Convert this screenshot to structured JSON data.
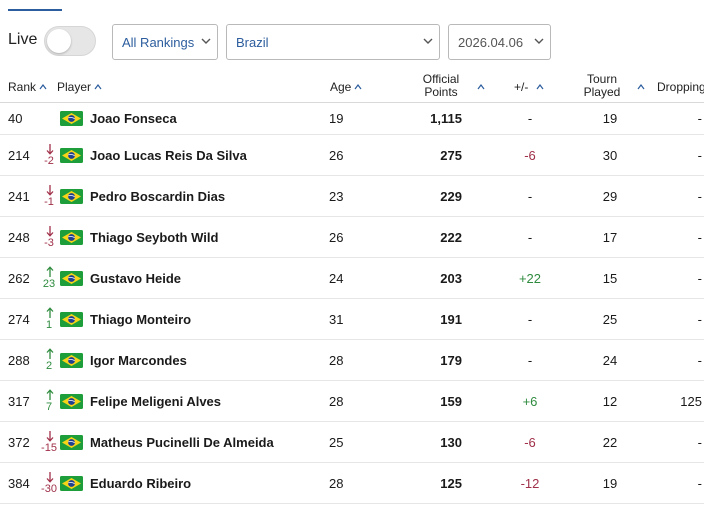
{
  "controls": {
    "live_label": "Live",
    "ranking_type": "All Rankings",
    "country": "Brazil",
    "date": "2026.04.06"
  },
  "columns": {
    "rank": "Rank",
    "player": "Player",
    "age": "Age",
    "points_line1": "Official",
    "points_line2": "Points",
    "delta": "+/-",
    "played_line1": "Tourn",
    "played_line2": "Played",
    "dropping": "Dropping"
  },
  "colors": {
    "accent": "#2c5d9e",
    "rise": "#2e8b3e",
    "fall": "#a03049"
  },
  "rows": [
    {
      "rank": "40",
      "move_dir": "none",
      "move": "",
      "flag": "brazil-flag-icon",
      "player": "Joao Fonseca",
      "age": "19",
      "points": "1,115",
      "delta": "-",
      "played": "19",
      "dropping": "-"
    },
    {
      "rank": "214",
      "move_dir": "down",
      "move": "-2",
      "flag": "brazil-flag-icon",
      "player": "Joao Lucas Reis Da Silva",
      "age": "26",
      "points": "275",
      "delta": "-6",
      "played": "30",
      "dropping": "-"
    },
    {
      "rank": "241",
      "move_dir": "down",
      "move": "-1",
      "flag": "brazil-flag-icon",
      "player": "Pedro Boscardin Dias",
      "age": "23",
      "points": "229",
      "delta": "-",
      "played": "29",
      "dropping": "-"
    },
    {
      "rank": "248",
      "move_dir": "down",
      "move": "-3",
      "flag": "brazil-flag-icon",
      "player": "Thiago Seyboth Wild",
      "age": "26",
      "points": "222",
      "delta": "-",
      "played": "17",
      "dropping": "-"
    },
    {
      "rank": "262",
      "move_dir": "up",
      "move": "23",
      "flag": "brazil-flag-icon",
      "player": "Gustavo Heide",
      "age": "24",
      "points": "203",
      "delta": "+22",
      "played": "15",
      "dropping": "-"
    },
    {
      "rank": "274",
      "move_dir": "up",
      "move": "1",
      "flag": "brazil-flag-icon",
      "player": "Thiago Monteiro",
      "age": "31",
      "points": "191",
      "delta": "-",
      "played": "25",
      "dropping": "-"
    },
    {
      "rank": "288",
      "move_dir": "up",
      "move": "2",
      "flag": "brazil-flag-icon",
      "player": "Igor Marcondes",
      "age": "28",
      "points": "179",
      "delta": "-",
      "played": "24",
      "dropping": "-"
    },
    {
      "rank": "317",
      "move_dir": "up",
      "move": "7",
      "flag": "brazil-flag-icon",
      "player": "Felipe Meligeni Alves",
      "age": "28",
      "points": "159",
      "delta": "+6",
      "played": "12",
      "dropping": "125"
    },
    {
      "rank": "372",
      "move_dir": "down",
      "move": "-15",
      "flag": "brazil-flag-icon",
      "player": "Matheus Pucinelli De Almeida",
      "age": "25",
      "points": "130",
      "delta": "-6",
      "played": "22",
      "dropping": "-"
    },
    {
      "rank": "384",
      "move_dir": "down",
      "move": "-30",
      "flag": "brazil-flag-icon",
      "player": "Eduardo Ribeiro",
      "age": "28",
      "points": "125",
      "delta": "-12",
      "played": "19",
      "dropping": "-"
    }
  ]
}
